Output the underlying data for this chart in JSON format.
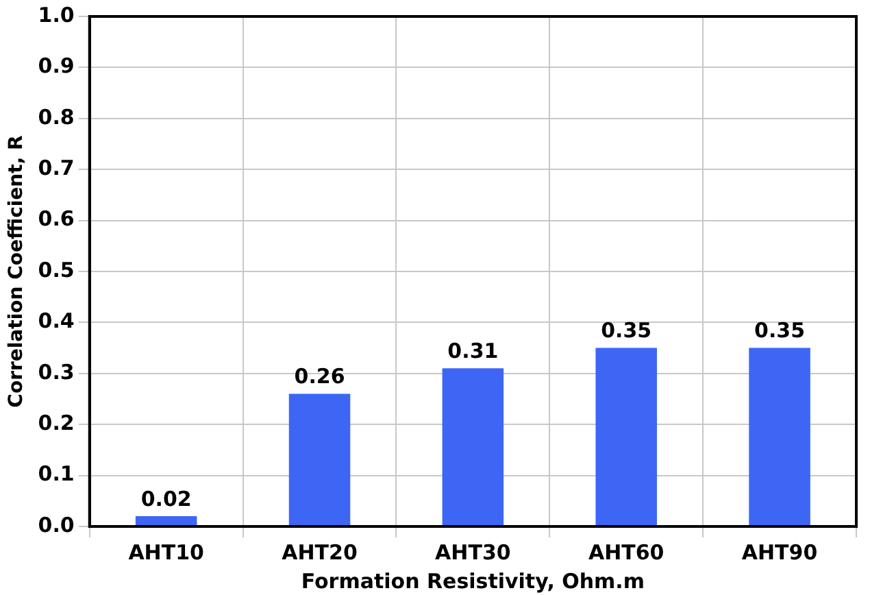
{
  "chart_data": {
    "type": "bar",
    "xlabel": "Formation Resistivity, Ohm.m",
    "ylabel": "Correlation Coefficient, R",
    "categories": [
      "AHT10",
      "AHT20",
      "AHT30",
      "AHT60",
      "AHT90"
    ],
    "values": [
      0.02,
      0.26,
      0.31,
      0.35,
      0.35
    ],
    "color": "#3d66f5",
    "ylim": [
      0,
      1
    ],
    "yticks": [
      {
        "value": 0,
        "label": "0.0"
      },
      0.1,
      0.2,
      0.3,
      0.4,
      0.5,
      0.6,
      0.7,
      0.8,
      0.9,
      {
        "value": 1,
        "label": "1.0"
      }
    ],
    "grid": true,
    "data_labels": true
  }
}
